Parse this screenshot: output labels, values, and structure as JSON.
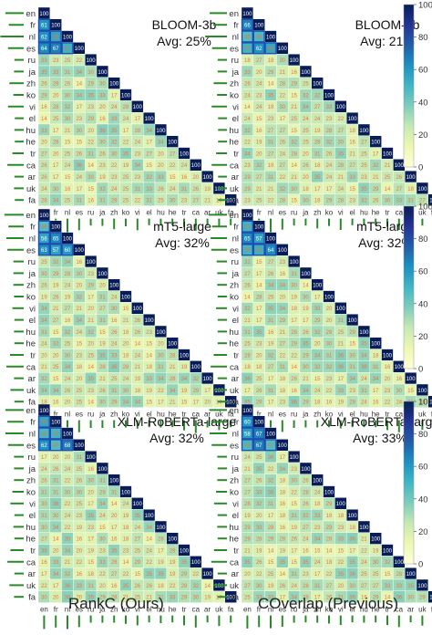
{
  "languages": [
    "en",
    "fr",
    "nl",
    "es",
    "ru",
    "ja",
    "zh",
    "ko",
    "vi",
    "el",
    "hu",
    "he",
    "tr",
    "ca",
    "ar",
    "uk",
    "fa"
  ],
  "colorbar_ticks": [
    0,
    20,
    40,
    60,
    80,
    100
  ],
  "captions": {
    "left": "RankC (Ours)",
    "right": "COverlap (Previous)"
  },
  "chart_data": [
    {
      "type": "heatmap",
      "model": "BLOOM-3b",
      "method": "RankC (Ours)",
      "title": "BLOOM-3b",
      "avg_label": "Avg: 25%",
      "avg": 25,
      "zlim": [
        0,
        100
      ],
      "bar_values": [
        0.55,
        0.38,
        0.8,
        0.42,
        0.1,
        0.12,
        0.35,
        0.15,
        0.42,
        0.08,
        0.1,
        0.08,
        0.2,
        0.45,
        0.1,
        0.12,
        0.08
      ]
    },
    {
      "type": "heatmap",
      "model": "BLOOM-3b",
      "method": "COverlap (Previous)",
      "title": "BLOOM-3b",
      "avg_label": "Avg: 21%",
      "avg": 21,
      "zlim": [
        0,
        100
      ],
      "bar_values": [
        0.5,
        0.32,
        0.72,
        0.38,
        0.1,
        0.1,
        0.3,
        0.13,
        0.4,
        0.08,
        0.08,
        0.08,
        0.18,
        0.4,
        0.08,
        0.1,
        0.08
      ]
    },
    {
      "type": "heatmap",
      "model": "mT5-large",
      "method": "RankC (Ours)",
      "title": "mT5-large",
      "avg_label": "Avg: 32%",
      "avg": 32,
      "zlim": [
        0,
        100
      ],
      "bar_values": [
        0.6,
        0.4,
        0.5,
        0.45,
        0.15,
        0.15,
        0.15,
        0.12,
        0.2,
        0.1,
        0.12,
        0.1,
        0.32,
        0.5,
        0.12,
        0.3,
        0.1
      ]
    },
    {
      "type": "heatmap",
      "model": "mT5-large",
      "method": "COverlap (Previous)",
      "title": "mT5-large",
      "avg_label": "Avg: 32%",
      "avg": 32,
      "zlim": [
        0,
        100
      ],
      "bar_values": [
        0.55,
        0.38,
        0.45,
        0.42,
        0.15,
        0.12,
        0.12,
        0.1,
        0.18,
        0.1,
        0.1,
        0.1,
        0.3,
        0.45,
        0.1,
        0.28,
        0.1
      ]
    },
    {
      "type": "heatmap",
      "model": "XLM-RoBERTa-large",
      "method": "RankC (Ours)",
      "title": "XLM-RoBERTa-large",
      "avg_label": "Avg: 32%",
      "avg": 32,
      "zlim": [
        0,
        100
      ],
      "bar_values": [
        0.55,
        0.45,
        0.55,
        0.42,
        0.12,
        0.12,
        0.12,
        0.2,
        0.3,
        0.1,
        0.15,
        0.1,
        0.3,
        0.45,
        0.1,
        0.35,
        0.12
      ]
    },
    {
      "type": "heatmap",
      "model": "XLM-RoBERTa-large",
      "method": "COverlap (Previous)",
      "title": "XLM-RoBERTa-large",
      "avg_label": "Avg: 33%",
      "avg": 33,
      "zlim": [
        0,
        100
      ],
      "bar_values": [
        0.52,
        0.42,
        0.5,
        0.4,
        0.12,
        0.1,
        0.12,
        0.18,
        0.28,
        0.1,
        0.12,
        0.1,
        0.28,
        0.42,
        0.1,
        0.32,
        0.1
      ]
    }
  ]
}
